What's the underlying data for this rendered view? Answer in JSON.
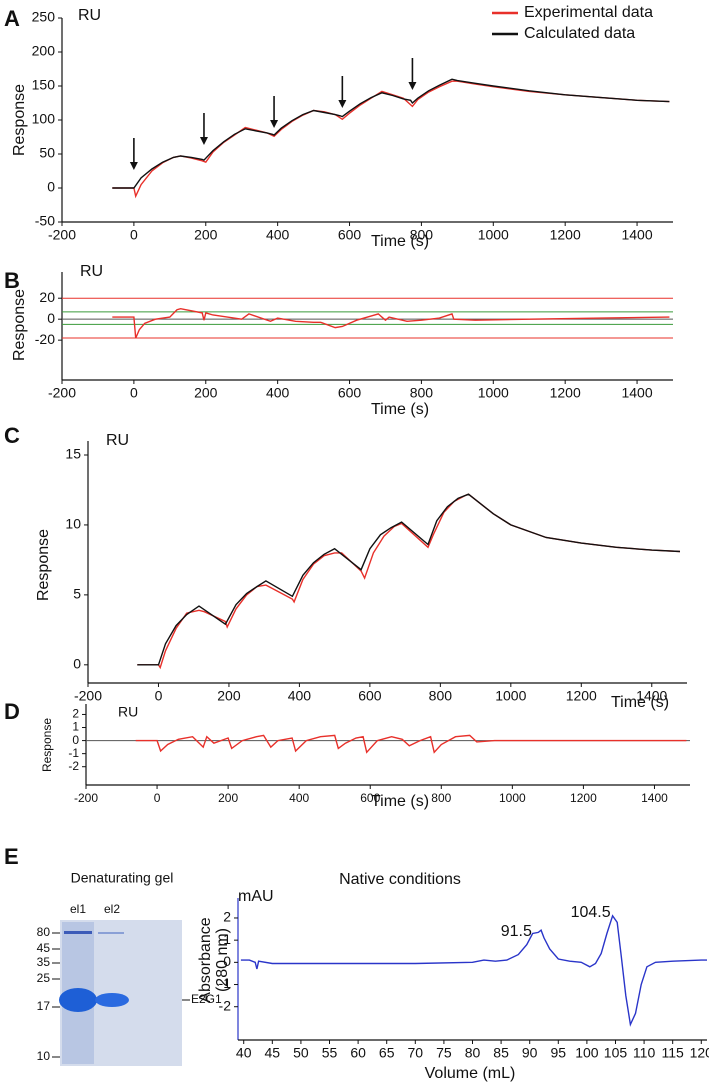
{
  "chart_data": [
    {
      "type": "line",
      "panel": "A",
      "unit": "RU",
      "xlabel": "Time (s)",
      "ylabel": "Response",
      "xlim": [
        -200,
        1500
      ],
      "ylim": [
        -50,
        250
      ],
      "xticks": [
        -200,
        0,
        200,
        400,
        600,
        800,
        1000,
        1200,
        1400
      ],
      "yticks": [
        -50,
        0,
        50,
        100,
        150,
        200,
        250
      ],
      "legend": "top-right",
      "arrows": [
        0,
        195,
        390,
        580,
        775
      ],
      "series": [
        {
          "name": "Experimental data",
          "color": "#e8302a",
          "x": [
            -60,
            0,
            5,
            20,
            50,
            80,
            110,
            130,
            160,
            190,
            200,
            220,
            250,
            280,
            310,
            340,
            370,
            390,
            410,
            440,
            470,
            500,
            530,
            560,
            580,
            600,
            630,
            660,
            690,
            720,
            750,
            775,
            790,
            820,
            850,
            885,
            900,
            950,
            1000,
            1100,
            1200,
            1300,
            1400,
            1490
          ],
          "values": [
            0,
            0,
            -12,
            5,
            25,
            37,
            45,
            47,
            44,
            40,
            38,
            53,
            67,
            78,
            89,
            85,
            81,
            76,
            86,
            98,
            107,
            114,
            112,
            108,
            101,
            110,
            122,
            132,
            142,
            137,
            132,
            120,
            130,
            141,
            149,
            157,
            157,
            153,
            149,
            142,
            137,
            133,
            129,
            127
          ]
        },
        {
          "name": "Calculated data",
          "color": "#111111",
          "x": [
            -60,
            0,
            20,
            50,
            80,
            110,
            130,
            160,
            190,
            195,
            220,
            250,
            280,
            310,
            340,
            370,
            385,
            390,
            410,
            440,
            470,
            500,
            530,
            560,
            575,
            580,
            600,
            630,
            660,
            690,
            720,
            750,
            770,
            775,
            790,
            820,
            850,
            885,
            900,
            950,
            1000,
            1100,
            1200,
            1300,
            1400,
            1490
          ],
          "values": [
            0,
            0,
            15,
            28,
            38,
            45,
            47,
            45,
            42,
            41,
            55,
            68,
            79,
            87,
            84,
            81,
            79,
            78,
            88,
            99,
            108,
            114,
            111,
            108,
            106,
            105,
            113,
            124,
            133,
            140,
            136,
            131,
            129,
            125,
            132,
            143,
            151,
            160,
            158,
            154,
            150,
            143,
            137,
            133,
            129,
            127
          ]
        }
      ]
    },
    {
      "type": "line",
      "panel": "B",
      "unit": "RU",
      "xlabel": "Time (s)",
      "ylabel": "Response",
      "xlim": [
        -200,
        1500
      ],
      "ylim": [
        -58,
        45
      ],
      "xticks": [
        -200,
        0,
        200,
        400,
        600,
        800,
        1000,
        1200,
        1400
      ],
      "yticks": [
        -20,
        0,
        20
      ],
      "hlines": [
        {
          "value": 20,
          "color": "#e8302a"
        },
        {
          "value": 7,
          "color": "#3a9a3a"
        },
        {
          "value": 0,
          "color": "#555555"
        },
        {
          "value": -5,
          "color": "#3a9a3a"
        },
        {
          "value": -18,
          "color": "#e8302a"
        }
      ],
      "series": [
        {
          "color": "#e8302a",
          "x": [
            -60,
            0,
            5,
            15,
            30,
            60,
            100,
            120,
            130,
            190,
            195,
            200,
            220,
            300,
            320,
            380,
            400,
            450,
            500,
            520,
            560,
            580,
            620,
            680,
            700,
            710,
            760,
            800,
            850,
            885,
            890,
            950,
            1100,
            1300,
            1490
          ],
          "values": [
            2,
            2,
            -18,
            -10,
            -4,
            0,
            2,
            9,
            10,
            6,
            -1,
            6,
            4,
            0,
            5,
            -2,
            1,
            -2,
            -3,
            -3,
            -8,
            -7,
            -1,
            5,
            -1,
            2,
            -2,
            -1,
            1,
            5,
            0,
            -1,
            0,
            1,
            2
          ]
        }
      ]
    },
    {
      "type": "line",
      "panel": "C",
      "unit": "RU",
      "xlabel": "Time (s)",
      "ylabel": "Response",
      "xlim": [
        -200,
        1500
      ],
      "ylim": [
        -1.3,
        16
      ],
      "xticks": [
        -200,
        0,
        200,
        400,
        600,
        800,
        1000,
        1200,
        1400
      ],
      "yticks": [
        0,
        5,
        10,
        15
      ],
      "series": [
        {
          "color": "#e8302a",
          "x": [
            -60,
            0,
            5,
            20,
            50,
            80,
            115,
            130,
            190,
            195,
            220,
            250,
            280,
            305,
            320,
            380,
            385,
            410,
            440,
            470,
            500,
            520,
            575,
            585,
            610,
            640,
            670,
            690,
            765,
            780,
            810,
            840,
            870,
            880,
            950,
            1000,
            1100,
            1200,
            1300,
            1400,
            1480
          ],
          "values": [
            0,
            0,
            -0.2,
            1.0,
            2.6,
            3.7,
            3.9,
            3.8,
            3.1,
            2.7,
            4.0,
            5.0,
            5.6,
            5.7,
            5.5,
            4.7,
            4.5,
            6.1,
            7.2,
            7.8,
            8.0,
            8.0,
            6.7,
            6.2,
            8.0,
            9.2,
            9.9,
            10.1,
            8.4,
            9.3,
            10.9,
            11.7,
            12.1,
            12.2,
            10.8,
            10.0,
            9.1,
            8.7,
            8.4,
            8.2,
            8.1
          ]
        },
        {
          "color": "#111111",
          "x": [
            -60,
            0,
            20,
            50,
            80,
            115,
            190,
            220,
            250,
            280,
            305,
            380,
            410,
            440,
            470,
            500,
            575,
            600,
            630,
            660,
            690,
            765,
            790,
            820,
            850,
            880,
            950,
            1000,
            1100,
            1200,
            1300,
            1400,
            1480
          ],
          "values": [
            0,
            0,
            1.5,
            2.8,
            3.6,
            4.2,
            2.9,
            4.3,
            5.1,
            5.6,
            6.0,
            4.9,
            6.4,
            7.3,
            7.9,
            8.3,
            6.8,
            8.3,
            9.3,
            9.8,
            10.2,
            8.6,
            10.3,
            11.3,
            11.9,
            12.2,
            10.8,
            10.0,
            9.1,
            8.7,
            8.4,
            8.2,
            8.1
          ]
        }
      ]
    },
    {
      "type": "line",
      "panel": "D",
      "unit": "RU",
      "xlabel": "Time (s)",
      "ylabel": "Response",
      "xlim": [
        -200,
        1500
      ],
      "ylim": [
        -3.4,
        2.8
      ],
      "xticks": [
        -200,
        0,
        200,
        400,
        600,
        800,
        1000,
        1200,
        1400
      ],
      "yticks": [
        -2,
        -1,
        0,
        1,
        2
      ],
      "hlines": [
        {
          "value": 0,
          "color": "#555555"
        }
      ],
      "series": [
        {
          "color": "#e8302a",
          "x": [
            -60,
            0,
            10,
            30,
            60,
            100,
            130,
            140,
            160,
            200,
            210,
            240,
            280,
            300,
            320,
            340,
            380,
            390,
            420,
            460,
            500,
            510,
            530,
            560,
            580,
            590,
            620,
            660,
            690,
            710,
            740,
            770,
            780,
            800,
            840,
            880,
            900,
            950,
            1000,
            1200,
            1490
          ],
          "values": [
            0,
            0,
            -0.8,
            -0.3,
            0.1,
            0.3,
            -0.5,
            0.3,
            -0.2,
            0.2,
            -0.6,
            0,
            0.3,
            0.4,
            -0.5,
            0,
            0.2,
            -0.8,
            0,
            0.3,
            0.4,
            -0.6,
            -0.2,
            0.2,
            0.3,
            -0.9,
            0,
            0.3,
            0.1,
            -0.4,
            0,
            0.3,
            -0.9,
            -0.3,
            0.3,
            0.4,
            -0.1,
            0,
            0,
            0,
            0
          ]
        }
      ]
    },
    {
      "type": "gel",
      "panel": "E",
      "title": "Denaturating gel",
      "lanes": [
        "el1",
        "el2"
      ],
      "markers": [
        80,
        45,
        35,
        25,
        17,
        10
      ],
      "band_label": "E2G1"
    },
    {
      "type": "line",
      "title": "Native conditions",
      "unit": "mAU",
      "xlabel": "Volume (mL)",
      "ylabel": [
        "Absorbance",
        "(280 nm)"
      ],
      "xlim": [
        39,
        121
      ],
      "ylim": [
        -3.5,
        2.9
      ],
      "xticks": [
        40,
        45,
        50,
        55,
        60,
        65,
        70,
        75,
        80,
        85,
        90,
        95,
        100,
        105,
        110,
        115,
        120
      ],
      "yticks": [
        -2,
        -1,
        0,
        1,
        2
      ],
      "peak_labels": [
        91.5,
        104.5
      ],
      "series": [
        {
          "color": "#2a35c9",
          "x": [
            39.5,
            41,
            42,
            42.3,
            42.6,
            45,
            50,
            60,
            70,
            80,
            82,
            84,
            86,
            88,
            89.5,
            90.5,
            91.5,
            92,
            92.5,
            93.5,
            95,
            97,
            99,
            100.5,
            101.5,
            102.5,
            103.5,
            104.5,
            105.3,
            106,
            106.8,
            107.6,
            108.5,
            109.5,
            110.5,
            112,
            115,
            120,
            121
          ],
          "values": [
            0.1,
            0.1,
            0.0,
            -0.3,
            0.05,
            -0.05,
            -0.05,
            -0.05,
            -0.05,
            0.0,
            0.1,
            0.05,
            0.1,
            0.35,
            0.8,
            1.3,
            1.35,
            1.45,
            1.1,
            0.6,
            0.15,
            0.05,
            0.0,
            -0.2,
            -0.05,
            0.4,
            1.3,
            2.1,
            1.8,
            0.3,
            -1.5,
            -2.8,
            -2.3,
            -1.0,
            -0.2,
            0.0,
            0.05,
            0.1,
            0.1
          ]
        }
      ]
    }
  ]
}
